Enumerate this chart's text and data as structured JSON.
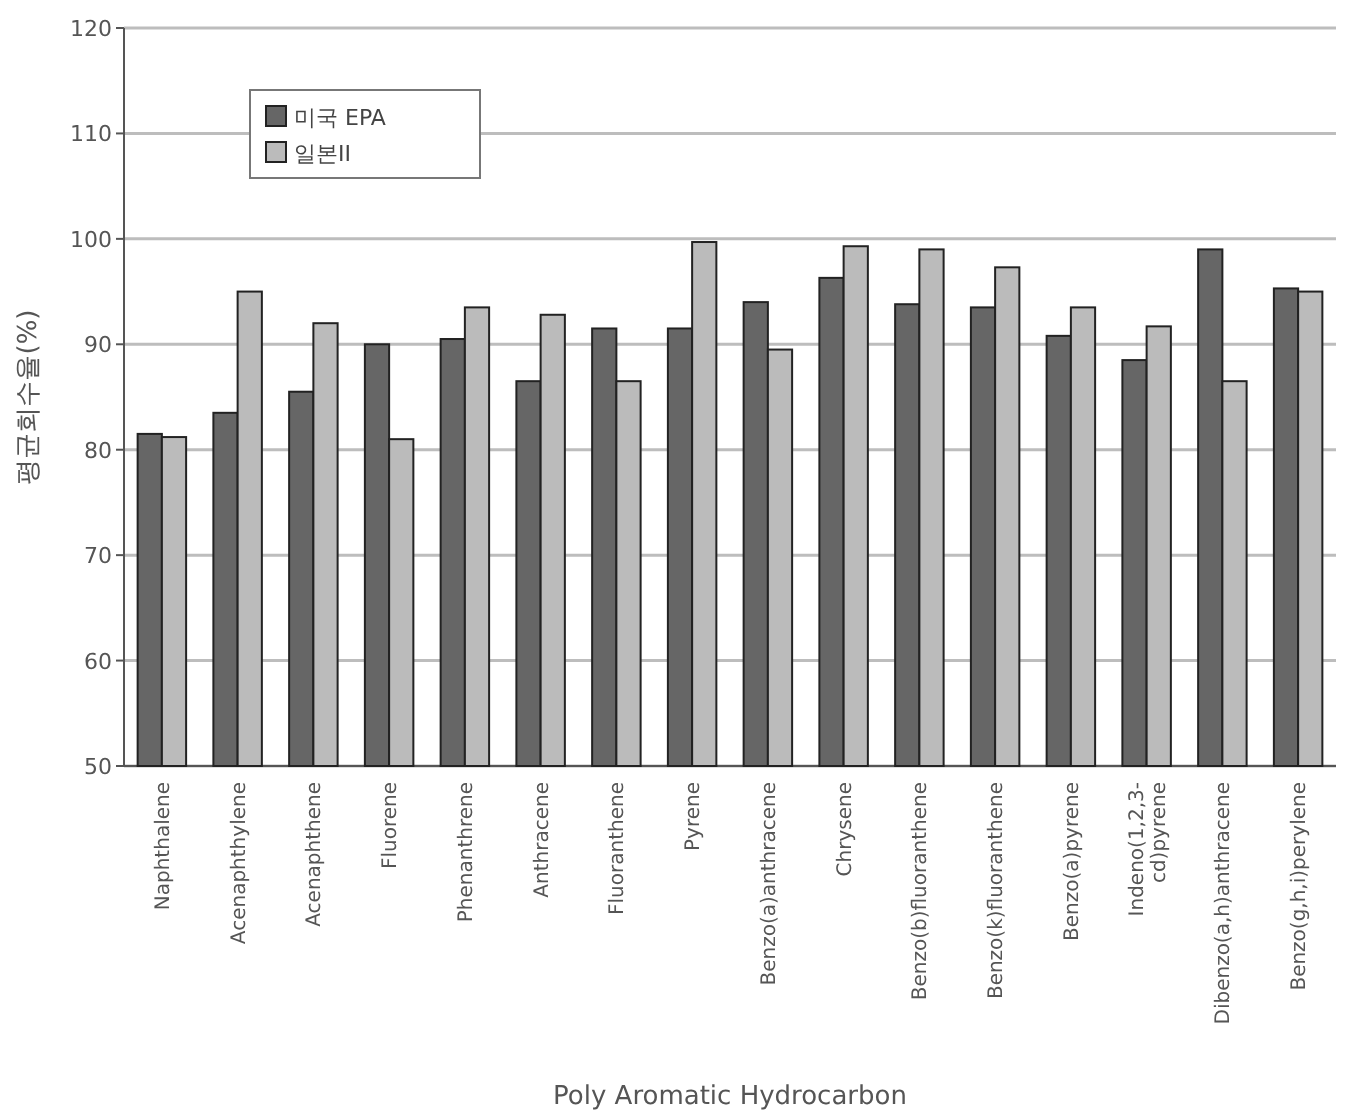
{
  "chart_data": {
    "type": "bar",
    "xlabel": "Poly Aromatic Hydrocarbon",
    "ylabel": "평균회수율(%)",
    "categories": [
      "Naphthalene",
      "Acenaphthylene",
      "Acenaphthene",
      "Fluorene",
      "Phenanthrene",
      "Anthracene",
      "Fluoranthene",
      "Pyrene",
      "Benzo(a)anthracene",
      "Chrysene",
      "Benzo(b)fluoranthene",
      "Benzo(k)fluoranthene",
      "Benzo(a)pyrene",
      "Indeno(1,2,3-\ncd)pyrene",
      "Dibenzo(a,h)anthracene",
      "Benzo(g,h,i)perylene"
    ],
    "series": [
      {
        "name": "미국 EPA",
        "color": "#666666",
        "values": [
          81.5,
          83.5,
          85.5,
          90,
          90.5,
          86.5,
          91.5,
          91.5,
          94,
          96.3,
          93.8,
          93.5,
          90.8,
          88.5,
          99,
          95.3
        ]
      },
      {
        "name": "일본II",
        "color": "#bbbbbb",
        "values": [
          81.2,
          95,
          92,
          81,
          93.5,
          92.8,
          86.5,
          99.7,
          89.5,
          99.3,
          99,
          97.3,
          93.5,
          91.7,
          86.5,
          95
        ]
      }
    ],
    "ylim": [
      50,
      120
    ],
    "yticks": [
      50,
      60,
      70,
      80,
      90,
      100,
      110,
      120
    ],
    "grid": "y",
    "legend": "top left"
  }
}
